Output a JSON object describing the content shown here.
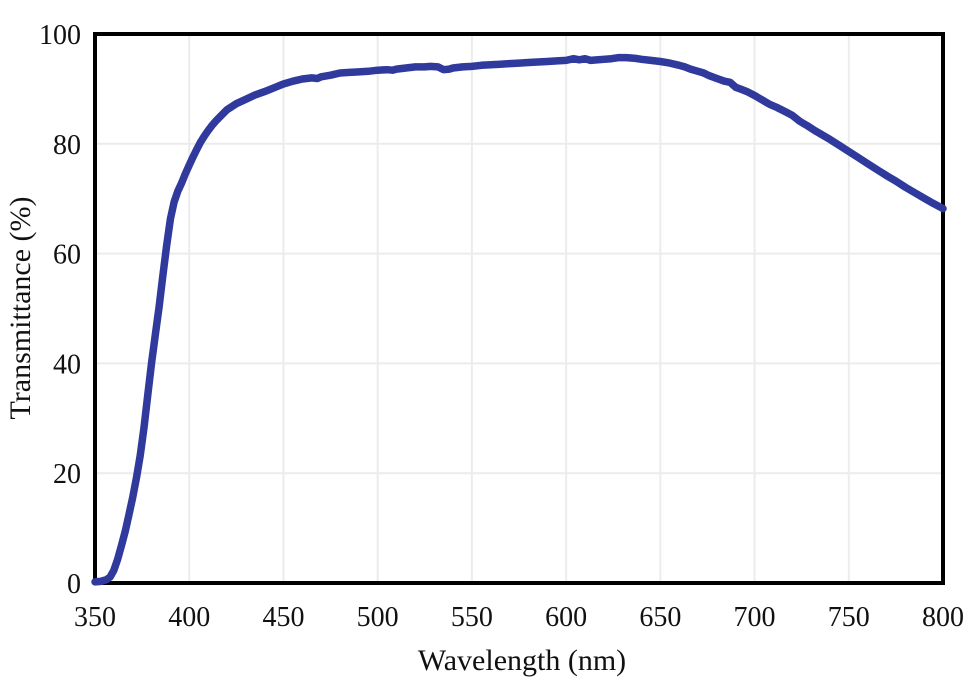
{
  "chart_data": {
    "type": "line",
    "title": "",
    "xlabel": "Wavelength (nm)",
    "ylabel": "Transmittance (%)",
    "xlim": [
      350,
      800
    ],
    "ylim": [
      0,
      100
    ],
    "x_ticks": [
      350,
      400,
      450,
      500,
      550,
      600,
      650,
      700,
      750,
      800
    ],
    "y_ticks": [
      0,
      20,
      40,
      60,
      80,
      100
    ],
    "grid": "major-both-light-gray",
    "legend": "none",
    "series": [
      {
        "name": "transmittance-curve",
        "color": "#303A9D",
        "stroke_width": 7.5,
        "points": [
          [
            350,
            0.2
          ],
          [
            353,
            0.3
          ],
          [
            356,
            0.6
          ],
          [
            358,
            1.1
          ],
          [
            360,
            2.3
          ],
          [
            362,
            4.3
          ],
          [
            364,
            6.8
          ],
          [
            366,
            9.4
          ],
          [
            368,
            12.4
          ],
          [
            370,
            15.6
          ],
          [
            372,
            19.2
          ],
          [
            374,
            23.2
          ],
          [
            376,
            28.3
          ],
          [
            378,
            34.3
          ],
          [
            380,
            40.0
          ],
          [
            382,
            45.2
          ],
          [
            384,
            50.3
          ],
          [
            386,
            55.9
          ],
          [
            388,
            61.4
          ],
          [
            390,
            66.3
          ],
          [
            392,
            69.4
          ],
          [
            394,
            71.4
          ],
          [
            396,
            72.9
          ],
          [
            398,
            74.6
          ],
          [
            400,
            76.1
          ],
          [
            402,
            77.6
          ],
          [
            404,
            79.0
          ],
          [
            406,
            80.3
          ],
          [
            408,
            81.4
          ],
          [
            410,
            82.4
          ],
          [
            412,
            83.3
          ],
          [
            414,
            84.1
          ],
          [
            416,
            84.8
          ],
          [
            418,
            85.5
          ],
          [
            420,
            86.2
          ],
          [
            425,
            87.3
          ],
          [
            430,
            88.1
          ],
          [
            435,
            88.9
          ],
          [
            440,
            89.5
          ],
          [
            445,
            90.2
          ],
          [
            450,
            90.9
          ],
          [
            455,
            91.4
          ],
          [
            460,
            91.8
          ],
          [
            465,
            92.0
          ],
          [
            468,
            91.9
          ],
          [
            470,
            92.2
          ],
          [
            475,
            92.5
          ],
          [
            480,
            92.9
          ],
          [
            485,
            93.0
          ],
          [
            490,
            93.1
          ],
          [
            495,
            93.2
          ],
          [
            500,
            93.4
          ],
          [
            505,
            93.5
          ],
          [
            508,
            93.4
          ],
          [
            510,
            93.6
          ],
          [
            515,
            93.8
          ],
          [
            520,
            94.0
          ],
          [
            525,
            94.0
          ],
          [
            528,
            94.1
          ],
          [
            532,
            94.0
          ],
          [
            535,
            93.5
          ],
          [
            538,
            93.6
          ],
          [
            540,
            93.8
          ],
          [
            545,
            94.0
          ],
          [
            550,
            94.1
          ],
          [
            555,
            94.3
          ],
          [
            560,
            94.4
          ],
          [
            565,
            94.5
          ],
          [
            570,
            94.6
          ],
          [
            575,
            94.7
          ],
          [
            580,
            94.8
          ],
          [
            585,
            94.9
          ],
          [
            590,
            95.0
          ],
          [
            595,
            95.1
          ],
          [
            600,
            95.2
          ],
          [
            604,
            95.5
          ],
          [
            607,
            95.3
          ],
          [
            610,
            95.5
          ],
          [
            613,
            95.2
          ],
          [
            617,
            95.3
          ],
          [
            620,
            95.4
          ],
          [
            624,
            95.5
          ],
          [
            628,
            95.7
          ],
          [
            632,
            95.7
          ],
          [
            636,
            95.6
          ],
          [
            640,
            95.4
          ],
          [
            645,
            95.2
          ],
          [
            650,
            95.0
          ],
          [
            655,
            94.7
          ],
          [
            660,
            94.3
          ],
          [
            663,
            94.0
          ],
          [
            666,
            93.6
          ],
          [
            670,
            93.2
          ],
          [
            673,
            92.9
          ],
          [
            676,
            92.4
          ],
          [
            680,
            91.9
          ],
          [
            684,
            91.4
          ],
          [
            687,
            91.2
          ],
          [
            690,
            90.3
          ],
          [
            693,
            89.9
          ],
          [
            696,
            89.5
          ],
          [
            700,
            88.8
          ],
          [
            704,
            88.0
          ],
          [
            708,
            87.2
          ],
          [
            712,
            86.6
          ],
          [
            716,
            85.9
          ],
          [
            720,
            85.2
          ],
          [
            724,
            84.1
          ],
          [
            728,
            83.3
          ],
          [
            732,
            82.4
          ],
          [
            736,
            81.6
          ],
          [
            740,
            80.8
          ],
          [
            745,
            79.7
          ],
          [
            750,
            78.6
          ],
          [
            755,
            77.5
          ],
          [
            760,
            76.4
          ],
          [
            765,
            75.3
          ],
          [
            770,
            74.2
          ],
          [
            775,
            73.2
          ],
          [
            780,
            72.1
          ],
          [
            785,
            71.1
          ],
          [
            790,
            70.1
          ],
          [
            795,
            69.1
          ],
          [
            800,
            68.2
          ]
        ]
      }
    ]
  },
  "colors": {
    "line": "#303A9D",
    "grid": "#ECECEC",
    "axis": "#000000",
    "background": "#FFFFFF",
    "text": "#111111"
  }
}
